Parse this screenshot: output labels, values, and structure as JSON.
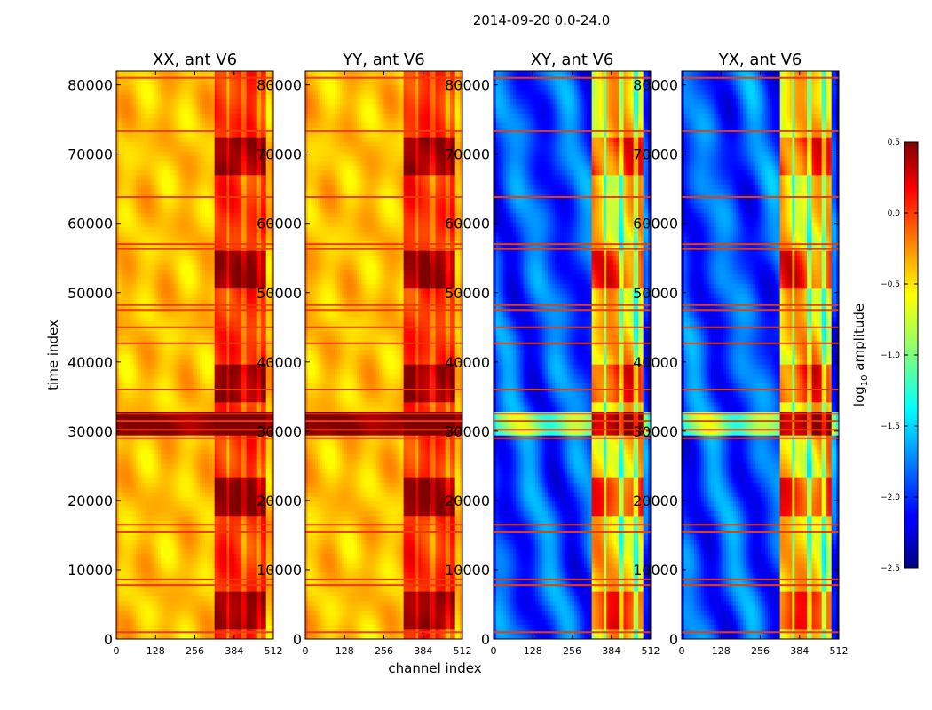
{
  "chart_data": {
    "type": "heatmap",
    "title": "2014-09-20 0.0-24.0",
    "xlabel": "channel index",
    "ylabel": "time index",
    "xlim": [
      0,
      512
    ],
    "ylim": [
      0,
      82000
    ],
    "xticks": [
      0,
      128,
      256,
      384,
      512
    ],
    "yticks": [
      0,
      10000,
      20000,
      30000,
      40000,
      50000,
      60000,
      70000,
      80000
    ],
    "panels": [
      {
        "title": "XX, ant V6",
        "base_level": -0.45
      },
      {
        "title": "YY, ant V6",
        "base_level": -0.45
      },
      {
        "title": "XY, ant V6",
        "base_level": -1.9
      },
      {
        "title": "YX, ant V6",
        "base_level": -1.9
      }
    ],
    "colorbar": {
      "label": "log",
      "label_sub": "10",
      "label_rest": " amplitude",
      "range": [
        -2.5,
        0.5
      ],
      "ticks": [
        "0.5",
        "0.0",
        "−0.5",
        "−1.0",
        "−1.5",
        "−2.0",
        "−2.5"
      ],
      "colormap": "jet"
    },
    "flagged_time_rows": [
      1000,
      7800,
      8600,
      15500,
      16500,
      29000,
      30200,
      31500,
      32500,
      36000,
      42700,
      45000,
      47500,
      48200,
      56300,
      57000,
      63800,
      73300,
      81000
    ],
    "high_amplitude_channel_range": [
      320,
      490
    ]
  }
}
